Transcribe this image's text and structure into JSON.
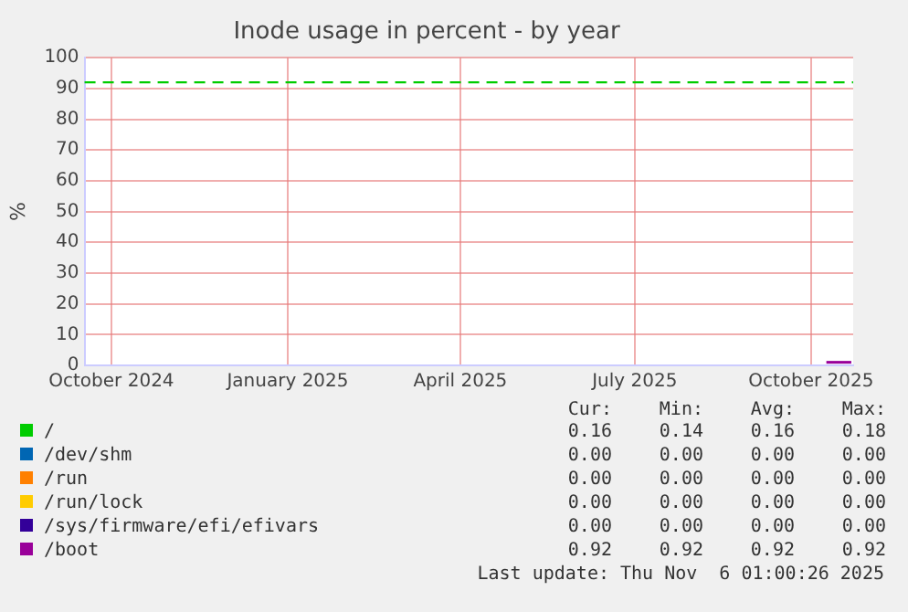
{
  "chart_data": {
    "type": "line",
    "title": "Inode usage in percent - by year",
    "ylabel": "%",
    "xlim": [
      "2024-09-17",
      "2025-10-23"
    ],
    "xticks": [
      {
        "value": "2024-10-01",
        "label": "October 2024"
      },
      {
        "value": "2025-01-01",
        "label": "January 2025"
      },
      {
        "value": "2025-04-01",
        "label": "April 2025"
      },
      {
        "value": "2025-07-01",
        "label": "July 2025"
      },
      {
        "value": "2025-10-01",
        "label": "October 2025"
      }
    ],
    "ylim": [
      0,
      100
    ],
    "yticks": [
      0,
      10,
      20,
      30,
      40,
      50,
      60,
      70,
      80,
      90,
      100
    ],
    "grid": true,
    "legend": "bottom",
    "marker": "none",
    "series": [
      {
        "name": "/",
        "color": "#00cc00"
      },
      {
        "name": "/dev/shm",
        "color": "#0066b3"
      },
      {
        "name": "/run",
        "color": "#ff8000"
      },
      {
        "name": "/run/lock",
        "color": "#ffcc00"
      },
      {
        "name": "/sys/firmware/efi/efivars",
        "color": "#330099"
      },
      {
        "name": "/boot",
        "color": "#990099",
        "x": [
          "2025-10-09",
          "2025-10-22"
        ],
        "values": [
          1,
          1
        ]
      }
    ],
    "ref_lines": [
      {
        "axis": "y",
        "value": 92,
        "color": "#00cc00",
        "line_style": "dashed"
      }
    ],
    "annotations": [
      "Cur:",
      "Min:",
      "Avg:",
      "Max:",
      "0.16",
      "0.14",
      "0.16",
      "0.18",
      "0.00",
      "0.00",
      "0.00",
      "0.00",
      "0.00",
      "0.00",
      "0.00",
      "0.00",
      "0.00",
      "0.00",
      "0.00",
      "0.00",
      "0.00",
      "0.00",
      "0.00",
      "0.00",
      "0.92",
      "0.92",
      "0.92",
      "0.92",
      "Last update: Thu Nov  6 01:00:26 2025"
    ]
  }
}
